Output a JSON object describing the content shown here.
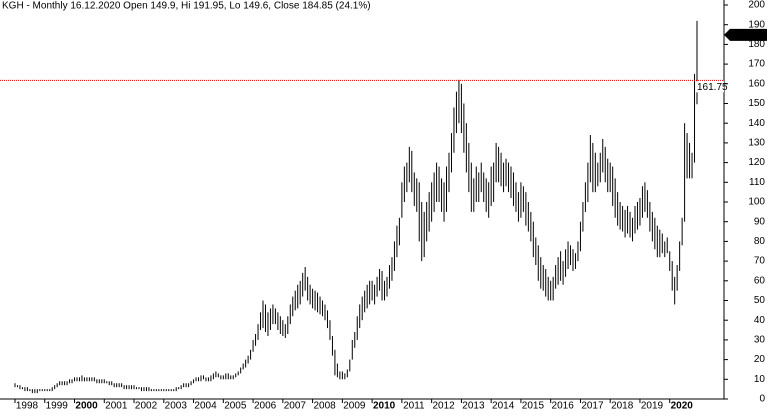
{
  "chart_data": {
    "type": "ohlc",
    "title": "KGH - Monthly 16.12.2020 Open 149.9, Hi 191.95, Lo 149.6, Close 184.85 (24.1%)",
    "color": "#000000",
    "categories": [
      "1998",
      null,
      null,
      null,
      null,
      null,
      null,
      null,
      null,
      null,
      null,
      null,
      "1999",
      null,
      null,
      null,
      null,
      null,
      null,
      null,
      null,
      null,
      null,
      null,
      "2000",
      null,
      null,
      null,
      null,
      null,
      null,
      null,
      null,
      null,
      null,
      null,
      "2001",
      null,
      null,
      null,
      null,
      null,
      null,
      null,
      null,
      null,
      null,
      null,
      "2002",
      null,
      null,
      null,
      null,
      null,
      null,
      null,
      null,
      null,
      null,
      null,
      "2003",
      null,
      null,
      null,
      null,
      null,
      null,
      null,
      null,
      null,
      null,
      null,
      "2004",
      null,
      null,
      null,
      null,
      null,
      null,
      null,
      null,
      null,
      null,
      null,
      "2005",
      null,
      null,
      null,
      null,
      null,
      null,
      null,
      null,
      null,
      null,
      null,
      "2006",
      null,
      null,
      null,
      null,
      null,
      null,
      null,
      null,
      null,
      null,
      null,
      "2007",
      null,
      null,
      null,
      null,
      null,
      null,
      null,
      null,
      null,
      null,
      null,
      "2008",
      null,
      null,
      null,
      null,
      null,
      null,
      null,
      null,
      null,
      null,
      null,
      "2009",
      null,
      null,
      null,
      null,
      null,
      null,
      null,
      null,
      null,
      null,
      null,
      "2010",
      null,
      null,
      null,
      null,
      null,
      null,
      null,
      null,
      null,
      null,
      null,
      "2011",
      null,
      null,
      null,
      null,
      null,
      null,
      null,
      null,
      null,
      null,
      null,
      "2012",
      null,
      null,
      null,
      null,
      null,
      null,
      null,
      null,
      null,
      null,
      null,
      "2013",
      null,
      null,
      null,
      null,
      null,
      null,
      null,
      null,
      null,
      null,
      null,
      "2014",
      null,
      null,
      null,
      null,
      null,
      null,
      null,
      null,
      null,
      null,
      null,
      "2015",
      null,
      null,
      null,
      null,
      null,
      null,
      null,
      null,
      null,
      null,
      null,
      "2016",
      null,
      null,
      null,
      null,
      null,
      null,
      null,
      null,
      null,
      null,
      null,
      "2017",
      null,
      null,
      null,
      null,
      null,
      null,
      null,
      null,
      null,
      null,
      null,
      "2018",
      null,
      null,
      null,
      null,
      null,
      null,
      null,
      null,
      null,
      null,
      null,
      "2019",
      null,
      null,
      null,
      null,
      null,
      null,
      null,
      null,
      null,
      null,
      null,
      "2020",
      null,
      null,
      null,
      null,
      null,
      null,
      null,
      null,
      null,
      null,
      null
    ],
    "high": [
      8,
      7,
      7,
      6,
      6,
      6,
      5,
      5,
      5,
      5,
      5,
      5,
      5,
      5,
      5,
      6,
      7,
      8,
      9,
      9,
      9,
      9,
      10,
      10,
      11,
      11,
      11,
      12,
      11,
      11,
      11,
      11,
      11,
      10,
      10,
      10,
      10,
      9,
      9,
      9,
      8,
      8,
      8,
      8,
      7,
      7,
      7,
      7,
      7,
      6,
      6,
      6,
      6,
      6,
      6,
      5,
      5,
      5,
      5,
      5,
      5,
      5,
      5,
      5,
      5,
      6,
      6,
      7,
      8,
      8,
      8,
      9,
      10,
      11,
      11,
      12,
      12,
      11,
      11,
      12,
      13,
      14,
      13,
      12,
      12,
      13,
      13,
      12,
      12,
      13,
      14,
      16,
      18,
      20,
      22,
      25,
      30,
      33,
      38,
      44,
      50,
      48,
      44,
      46,
      48,
      46,
      44,
      42,
      40,
      38,
      42,
      48,
      52,
      55,
      58,
      60,
      64,
      67,
      62,
      58,
      56,
      55,
      54,
      52,
      50,
      48,
      45,
      40,
      32,
      25,
      18,
      14,
      14,
      13,
      15,
      20,
      30,
      34,
      42,
      48,
      52,
      55,
      58,
      60,
      60,
      58,
      62,
      66,
      65,
      60,
      62,
      68,
      72,
      80,
      88,
      92,
      110,
      118,
      120,
      128,
      126,
      115,
      112,
      110,
      100,
      95,
      100,
      105,
      110,
      115,
      120,
      118,
      112,
      110,
      118,
      125,
      135,
      148,
      156,
      162,
      160,
      150,
      140,
      130,
      120,
      112,
      118,
      115,
      120,
      115,
      112,
      110,
      118,
      120,
      130,
      128,
      125,
      120,
      122,
      120,
      118,
      115,
      110,
      105,
      110,
      108,
      105,
      100,
      95,
      90,
      82,
      78,
      72,
      68,
      66,
      62,
      60,
      62,
      68,
      72,
      75,
      70,
      76,
      80,
      78,
      76,
      74,
      80,
      90,
      100,
      110,
      120,
      134,
      130,
      125,
      120,
      125,
      132,
      128,
      122,
      120,
      118,
      112,
      105,
      100,
      98,
      96,
      98,
      95,
      92,
      98,
      100,
      102,
      108,
      110,
      106,
      100,
      95,
      92,
      88,
      86,
      84,
      80,
      82,
      75,
      70,
      62,
      68,
      80,
      92,
      140,
      135,
      130,
      125,
      165,
      191.95
    ],
    "low": [
      6,
      6,
      5,
      5,
      4,
      4,
      4,
      3,
      3,
      3,
      4,
      4,
      4,
      4,
      4,
      4,
      5,
      6,
      7,
      7,
      7,
      7,
      8,
      8,
      9,
      9,
      9,
      9,
      9,
      9,
      9,
      9,
      9,
      8,
      8,
      8,
      8,
      8,
      7,
      7,
      6,
      6,
      6,
      6,
      5,
      5,
      5,
      5,
      5,
      5,
      5,
      4,
      4,
      4,
      4,
      4,
      4,
      4,
      4,
      4,
      4,
      4,
      4,
      4,
      4,
      4,
      5,
      5,
      6,
      6,
      6,
      7,
      8,
      9,
      9,
      9,
      10,
      9,
      9,
      9,
      10,
      11,
      11,
      10,
      10,
      10,
      10,
      10,
      10,
      11,
      12,
      13,
      15,
      16,
      18,
      20,
      24,
      27,
      30,
      35,
      36,
      34,
      32,
      35,
      38,
      38,
      35,
      33,
      32,
      31,
      33,
      38,
      42,
      45,
      46,
      48,
      52,
      55,
      50,
      48,
      46,
      45,
      44,
      43,
      42,
      40,
      36,
      30,
      22,
      12,
      11,
      10,
      10,
      10,
      11,
      14,
      20,
      26,
      30,
      36,
      40,
      44,
      46,
      48,
      50,
      48,
      52,
      55,
      50,
      50,
      52,
      56,
      60,
      65,
      72,
      78,
      92,
      100,
      105,
      110,
      105,
      98,
      95,
      80,
      70,
      72,
      80,
      85,
      90,
      95,
      100,
      100,
      95,
      90,
      95,
      105,
      115,
      125,
      135,
      140,
      135,
      125,
      115,
      105,
      95,
      95,
      100,
      100,
      105,
      100,
      95,
      92,
      98,
      100,
      110,
      110,
      108,
      105,
      108,
      105,
      102,
      98,
      95,
      90,
      92,
      95,
      88,
      85,
      80,
      72,
      68,
      60,
      56,
      55,
      52,
      50,
      50,
      50,
      56,
      58,
      60,
      58,
      62,
      66,
      68,
      65,
      66,
      70,
      75,
      85,
      95,
      100,
      110,
      105,
      105,
      108,
      110,
      115,
      110,
      105,
      105,
      98,
      92,
      88,
      86,
      85,
      82,
      84,
      82,
      80,
      84,
      86,
      88,
      92,
      95,
      92,
      85,
      80,
      76,
      72,
      72,
      74,
      72,
      74,
      65,
      55,
      48,
      55,
      65,
      78,
      90,
      112,
      112,
      112,
      120,
      149.6
    ],
    "ylim": [
      0,
      200
    ],
    "yticks": [
      0,
      10,
      20,
      30,
      40,
      50,
      60,
      70,
      80,
      90,
      100,
      110,
      120,
      130,
      140,
      150,
      160,
      170,
      180,
      190,
      200
    ],
    "last_value": 184.85,
    "reference_line": {
      "value": 161.75,
      "color": "#e00000"
    }
  }
}
